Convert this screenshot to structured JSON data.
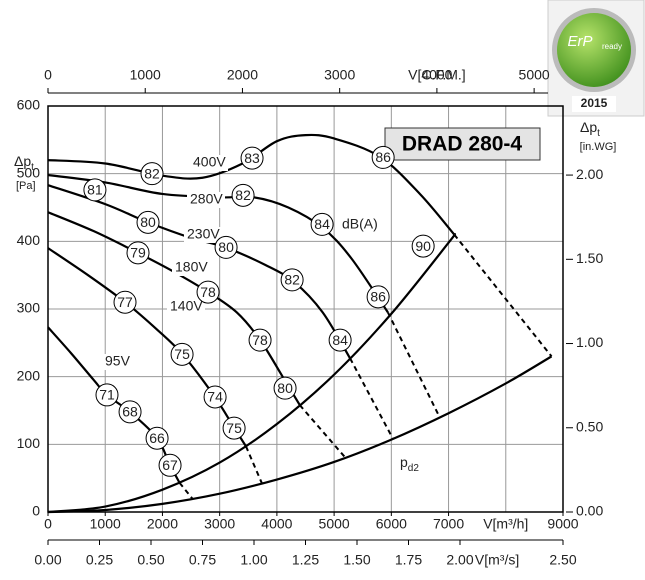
{
  "chart_data": {
    "type": "line",
    "title": "DRAD 280-4",
    "xlim": [
      0,
      9000
    ],
    "ylim": [
      0,
      600
    ],
    "xticks": [
      0,
      1000,
      2000,
      3000,
      4000,
      5000,
      6000,
      7000,
      9000
    ],
    "yticks": [
      0,
      100,
      200,
      300,
      400,
      500,
      600
    ],
    "xgrid": [
      1000,
      2000,
      3000,
      4000,
      5000,
      6000,
      7000,
      8000
    ],
    "grid": true,
    "xlabel": "V[m³/h]",
    "ylabel": {
      "main": "Δp",
      "sub": "t",
      "unit": "[Pa]"
    },
    "x2lim": [
      0,
      5297
    ],
    "x2ticks": [
      0,
      1000,
      2000,
      3000,
      4000,
      5000
    ],
    "x2label": "V[C.F.M.]",
    "x3lim": [
      0,
      2.5
    ],
    "x3ticks": [
      {
        "value": 0,
        "label": "0.00"
      },
      {
        "value": 0.25,
        "label": "0.25"
      },
      {
        "value": 0.5,
        "label": "0.50"
      },
      {
        "value": 0.75,
        "label": "0.75"
      },
      {
        "value": 1,
        "label": "1.00"
      },
      {
        "value": 1.25,
        "label": "1.25"
      },
      {
        "value": 1.5,
        "label": "1.50"
      },
      {
        "value": 1.75,
        "label": "1.75"
      },
      {
        "value": 2,
        "label": "2.00"
      },
      {
        "value": 2.5,
        "label": "2.50"
      }
    ],
    "x3label": "V[m³/s]",
    "y2lim": [
      0,
      2.41
    ],
    "y2ticks": [
      {
        "value": 0,
        "label": "0.00"
      },
      {
        "value": 0.5,
        "label": "0.50"
      },
      {
        "value": 1,
        "label": "1.00"
      },
      {
        "value": 1.5,
        "label": "1.50"
      },
      {
        "value": 2,
        "label": "2.00"
      }
    ],
    "y2label": {
      "main": "Δp",
      "sub": "t",
      "unit": "[in.WG]"
    },
    "series": [
      {
        "name": "400V",
        "color": "#000000",
        "x": [
          0,
          1000,
          2000,
          2700,
          3400,
          4000,
          4500,
          5000,
          5800,
          6500,
          7100
        ],
        "values": [
          520,
          515,
          497,
          494,
          515,
          548,
          557,
          552,
          525,
          470,
          410
        ]
      },
      {
        "name": "280V",
        "color": "#000000",
        "x": [
          0,
          1000,
          2000,
          3000,
          3600,
          4200,
          4800,
          5300,
          5940
        ],
        "values": [
          498,
          487,
          470,
          465,
          465,
          450,
          420,
          375,
          295
        ]
      },
      {
        "name": "230V",
        "color": "#000000",
        "x": [
          0,
          1000,
          1750,
          2500,
          3100,
          3800,
          4300,
          4800,
          5280
        ],
        "values": [
          483,
          455,
          428,
          405,
          391,
          365,
          340,
          295,
          227
        ]
      },
      {
        "name": "180V",
        "color": "#000000",
        "x": [
          0,
          800,
          1570,
          2200,
          2800,
          3300,
          3700,
          4100,
          4400
        ],
        "values": [
          443,
          415,
          383,
          355,
          325,
          295,
          255,
          200,
          158
        ]
      },
      {
        "name": "140V",
        "color": "#000000",
        "x": [
          0,
          700,
          1350,
          1900,
          2350,
          2900,
          3250,
          3460
        ],
        "values": [
          390,
          350,
          310,
          270,
          233,
          172,
          125,
          97
        ]
      },
      {
        "name": "95V",
        "color": "#000000",
        "x": [
          0,
          400,
          800,
          1030,
          1430,
          1900,
          2130,
          2300
        ],
        "values": [
          273,
          235,
          195,
          173,
          148,
          110,
          70,
          43
        ]
      },
      {
        "color": "#000000",
        "x": [
          0,
          1000,
          2000,
          3000,
          4000,
          5000,
          6000,
          7000,
          7100
        ],
        "values": [
          0,
          8,
          33,
          73,
          130,
          203,
          293,
          398,
          410
        ]
      },
      {
        "color": "#000000",
        "x": [
          0,
          1000,
          2000,
          3000,
          4000,
          5000,
          6000,
          7000,
          8000,
          8800
        ],
        "values": [
          0,
          3,
          12,
          27,
          48,
          74,
          107,
          146,
          190,
          230
        ]
      },
      {
        "color": "#000000",
        "dashed": true,
        "x": [
          7100,
          8800
        ],
        "values": [
          410,
          230
        ]
      },
      {
        "color": "#000000",
        "dashed": true,
        "x": [
          5940,
          6850
        ],
        "values": [
          295,
          139
        ]
      },
      {
        "color": "#000000",
        "dashed": true,
        "x": [
          5280,
          6030
        ],
        "values": [
          227,
          108
        ]
      },
      {
        "color": "#000000",
        "dashed": true,
        "x": [
          4400,
          5200
        ],
        "values": [
          158,
          80
        ]
      },
      {
        "color": "#000000",
        "dashed": true,
        "x": [
          3460,
          3740
        ],
        "values": [
          97,
          42
        ]
      },
      {
        "color": "#000000",
        "dashed": true,
        "x": [
          2300,
          2530
        ],
        "values": [
          43,
          19
        ]
      }
    ],
    "markers": [
      {
        "x": 1818,
        "y": 500,
        "value": 82
      },
      {
        "x": 3566,
        "y": 523,
        "value": 83
      },
      {
        "x": 5857,
        "y": 524,
        "value": 86
      },
      {
        "x": 820,
        "y": 476,
        "value": 81
      },
      {
        "x": 3409,
        "y": 468,
        "value": 82
      },
      {
        "x": 4790,
        "y": 425,
        "value": 84
      },
      {
        "x": 5769,
        "y": 318,
        "value": 86
      },
      {
        "x": 1748,
        "y": 428,
        "value": 80
      },
      {
        "x": 3112,
        "y": 391,
        "value": 80
      },
      {
        "x": 4266,
        "y": 343,
        "value": 82
      },
      {
        "x": 5105,
        "y": 254,
        "value": 84
      },
      {
        "x": 1573,
        "y": 383,
        "value": 79
      },
      {
        "x": 2797,
        "y": 325,
        "value": 78
      },
      {
        "x": 3706,
        "y": 254,
        "value": 78
      },
      {
        "x": 4143,
        "y": 183,
        "value": 80
      },
      {
        "x": 1346,
        "y": 310,
        "value": 77
      },
      {
        "x": 2343,
        "y": 233,
        "value": 75
      },
      {
        "x": 2920,
        "y": 170,
        "value": 74
      },
      {
        "x": 3252,
        "y": 124,
        "value": 75
      },
      {
        "x": 1031,
        "y": 173,
        "value": 71
      },
      {
        "x": 1434,
        "y": 148,
        "value": 68
      },
      {
        "x": 1906,
        "y": 109,
        "value": 66
      },
      {
        "x": 2133,
        "y": 69,
        "value": 67
      },
      {
        "x": 6556,
        "y": 393,
        "value": 90
      }
    ],
    "annotations": {
      "dba": "dB(A)",
      "pd2": {
        "main": "p",
        "sub": "d2"
      }
    }
  },
  "badge": {
    "top": "ErP",
    "sub": "ready",
    "year": "2015"
  }
}
